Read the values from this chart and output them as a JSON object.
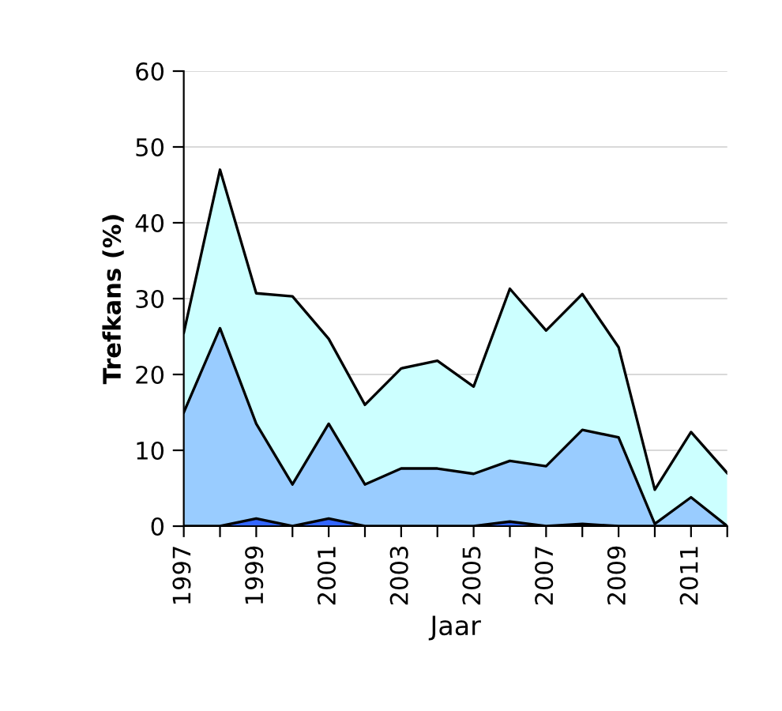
{
  "chart_data": {
    "type": "area",
    "xlabel": "Jaar",
    "ylabel": "Trefkans (%)",
    "x": [
      1997,
      1998,
      1999,
      2000,
      2001,
      2002,
      2003,
      2004,
      2005,
      2006,
      2007,
      2008,
      2009,
      2010,
      2011,
      2012
    ],
    "series": [
      {
        "color": "#ccffff",
        "values": [
          25.5,
          47,
          30.7,
          30.3,
          24.7,
          16,
          20.8,
          21.8,
          18.4,
          31.3,
          25.8,
          30.6,
          23.6,
          4.8,
          12.4,
          7
        ]
      },
      {
        "color": "#99ccff",
        "values": [
          15,
          26.1,
          13.5,
          5.5,
          13.5,
          5.5,
          7.6,
          7.6,
          6.9,
          8.6,
          7.9,
          12.7,
          11.7,
          0.3,
          3.8,
          0
        ]
      },
      {
        "color": "#3366ff",
        "values": [
          0,
          0,
          1,
          0,
          1,
          0,
          0,
          0,
          0,
          0.6,
          0,
          0.3,
          0,
          0,
          0,
          0
        ]
      }
    ],
    "xlim": [
      1997,
      2012
    ],
    "xticks": [
      1997,
      {
        "value": 1998,
        "label": null
      },
      1999,
      {
        "value": 2000,
        "label": null
      },
      2001,
      {
        "value": 2002,
        "label": null
      },
      2003,
      {
        "value": 2004,
        "label": null
      },
      2005,
      {
        "value": 2006,
        "label": null
      },
      2007,
      {
        "value": 2008,
        "label": null
      },
      2009,
      {
        "value": 2010,
        "label": null
      },
      2011,
      {
        "value": 2012,
        "label": null
      }
    ],
    "ylim": [
      0,
      60
    ],
    "yticks": [
      0,
      10,
      20,
      30,
      40,
      50,
      60
    ],
    "grid": "y"
  }
}
